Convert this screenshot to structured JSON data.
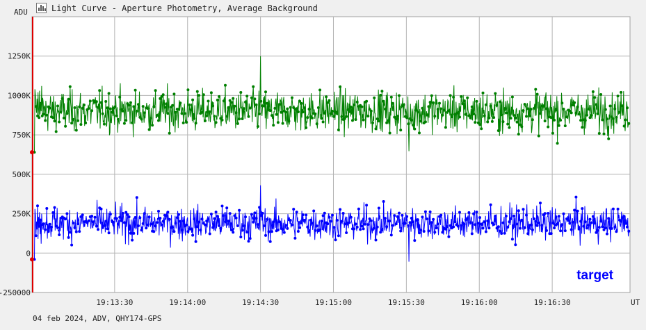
{
  "window": {
    "title": "Light Curve - Aperture Photometry, Average Background",
    "icon": "chart-icon"
  },
  "footer": {
    "info": "04 feb 2024, ADV, QHY174-GPS"
  },
  "chart_data": {
    "type": "line",
    "ylabel": "ADU",
    "xlabel": "UT",
    "ylim": [
      -250000,
      1500000
    ],
    "xlim": [
      "19:12:56",
      "19:17:02"
    ],
    "yticks": [
      {
        "value": 1250000,
        "label": "1250K"
      },
      {
        "value": 1000000,
        "label": "1000K"
      },
      {
        "value": 750000,
        "label": "750K"
      },
      {
        "value": 500000,
        "label": "500K"
      },
      {
        "value": 250000,
        "label": "250K"
      },
      {
        "value": 0,
        "label": "0"
      },
      {
        "value": -250000,
        "label": "-250000"
      }
    ],
    "xticks": [
      "19:13:30",
      "19:14:00",
      "19:14:30",
      "19:15:00",
      "19:15:30",
      "19:16:00",
      "19:16:30"
    ],
    "grid": true,
    "series": [
      {
        "name": "",
        "color": "#008000",
        "mean": 900000,
        "min": 615000,
        "max": 1250000,
        "values": [
          640000,
          1040000,
          1000000,
          930000,
          890000,
          980000,
          870000,
          1020000,
          920000,
          860000,
          1030000,
          880000,
          950000,
          900000,
          1060000,
          870000
        ]
      },
      {
        "name": "target",
        "color": "#0000ff",
        "mean": 190000,
        "min": -80000,
        "max": 430000,
        "values": [
          -40000,
          280000,
          240000,
          110000,
          200000,
          150000,
          300000,
          90000,
          230000,
          170000,
          260000,
          120000,
          210000,
          60000,
          250000,
          180000
        ]
      }
    ],
    "start_marker_color": "#dd0000",
    "annotations": [
      "target"
    ]
  }
}
